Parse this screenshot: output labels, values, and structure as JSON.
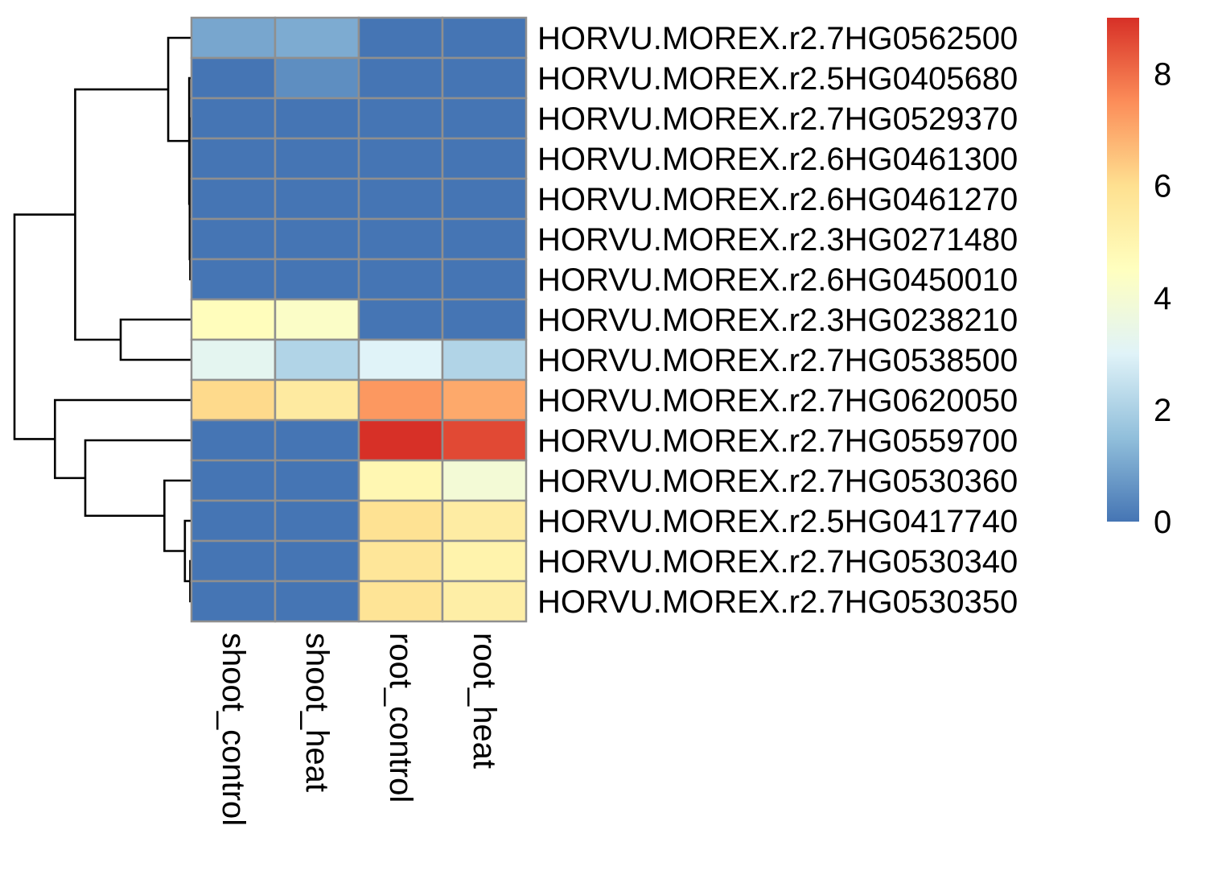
{
  "chart_data": {
    "type": "heatmap",
    "title": "",
    "columns": [
      "shoot_control",
      "shoot_heat",
      "root_control",
      "root_heat"
    ],
    "rows": [
      "HORVU.MOREX.r2.7HG0562500",
      "HORVU.MOREX.r2.5HG0405680",
      "HORVU.MOREX.r2.7HG0529370",
      "HORVU.MOREX.r2.6HG0461300",
      "HORVU.MOREX.r2.6HG0461270",
      "HORVU.MOREX.r2.3HG0271480",
      "HORVU.MOREX.r2.6HG0450010",
      "HORVU.MOREX.r2.3HG0238210",
      "HORVU.MOREX.r2.7HG0538500",
      "HORVU.MOREX.r2.7HG0620050",
      "HORVU.MOREX.r2.7HG0559700",
      "HORVU.MOREX.r2.7HG0530360",
      "HORVU.MOREX.r2.5HG0417740",
      "HORVU.MOREX.r2.7HG0530340",
      "HORVU.MOREX.r2.7HG0530350"
    ],
    "values": [
      [
        1.0,
        1.1,
        0.0,
        0.0
      ],
      [
        0.0,
        0.5,
        0.0,
        0.0
      ],
      [
        0.0,
        0.0,
        0.0,
        0.0
      ],
      [
        0.0,
        0.0,
        0.0,
        0.0
      ],
      [
        0.0,
        0.0,
        0.0,
        0.0
      ],
      [
        0.0,
        0.0,
        0.0,
        0.0
      ],
      [
        0.0,
        0.0,
        0.0,
        0.0
      ],
      [
        4.6,
        4.3,
        0.0,
        0.0
      ],
      [
        3.2,
        2.1,
        3.0,
        2.1
      ],
      [
        6.1,
        5.5,
        7.3,
        7.0
      ],
      [
        0.0,
        0.0,
        9.0,
        8.6
      ],
      [
        0.0,
        0.0,
        4.9,
        3.9
      ],
      [
        0.0,
        0.0,
        5.9,
        5.4
      ],
      [
        0.0,
        0.0,
        5.7,
        5.1
      ],
      [
        0.0,
        0.0,
        5.8,
        5.3
      ]
    ],
    "legend": {
      "range": [
        0,
        9
      ],
      "ticks": [
        0,
        2,
        4,
        6,
        8
      ],
      "colors": [
        "#4575b4",
        "#91bfdb",
        "#e0f3f8",
        "#ffffbf",
        "#fee090",
        "#fc8d59",
        "#d73027"
      ]
    },
    "cell_border_color": "#8f8f8f",
    "dendrogram": {
      "leaves": [
        0,
        1,
        2,
        3,
        4,
        5,
        6,
        7,
        8,
        9,
        10,
        11,
        12,
        13,
        14
      ],
      "merges": [
        {
          "a": [
            "L",
            5
          ],
          "b": [
            "L",
            6
          ],
          "h": 0.05
        },
        {
          "a": [
            "L",
            3
          ],
          "b": [
            "L",
            4
          ],
          "h": 0.05
        },
        {
          "a": [
            "L",
            2
          ],
          "b": [
            "M",
            1
          ],
          "h": 0.06
        },
        {
          "a": [
            "M",
            2
          ],
          "b": [
            "M",
            0
          ],
          "h": 0.07
        },
        {
          "a": [
            "L",
            1
          ],
          "b": [
            "M",
            3
          ],
          "h": 0.09
        },
        {
          "a": [
            "L",
            0
          ],
          "b": [
            "M",
            4
          ],
          "h": 0.92
        },
        {
          "a": [
            "L",
            7
          ],
          "b": [
            "L",
            8
          ],
          "h": 2.8
        },
        {
          "a": [
            "M",
            5
          ],
          "b": [
            "M",
            6
          ],
          "h": 4.6
        },
        {
          "a": [
            "L",
            13
          ],
          "b": [
            "L",
            14
          ],
          "h": 0.05
        },
        {
          "a": [
            "L",
            12
          ],
          "b": [
            "M",
            8
          ],
          "h": 0.26
        },
        {
          "a": [
            "L",
            11
          ],
          "b": [
            "M",
            9
          ],
          "h": 1.07
        },
        {
          "a": [
            "L",
            10
          ],
          "b": [
            "M",
            10
          ],
          "h": 4.2
        },
        {
          "a": [
            "L",
            9
          ],
          "b": [
            "M",
            11
          ],
          "h": 5.4
        },
        {
          "a": [
            "M",
            7
          ],
          "b": [
            "M",
            12
          ],
          "h": 7.0
        }
      ]
    }
  }
}
